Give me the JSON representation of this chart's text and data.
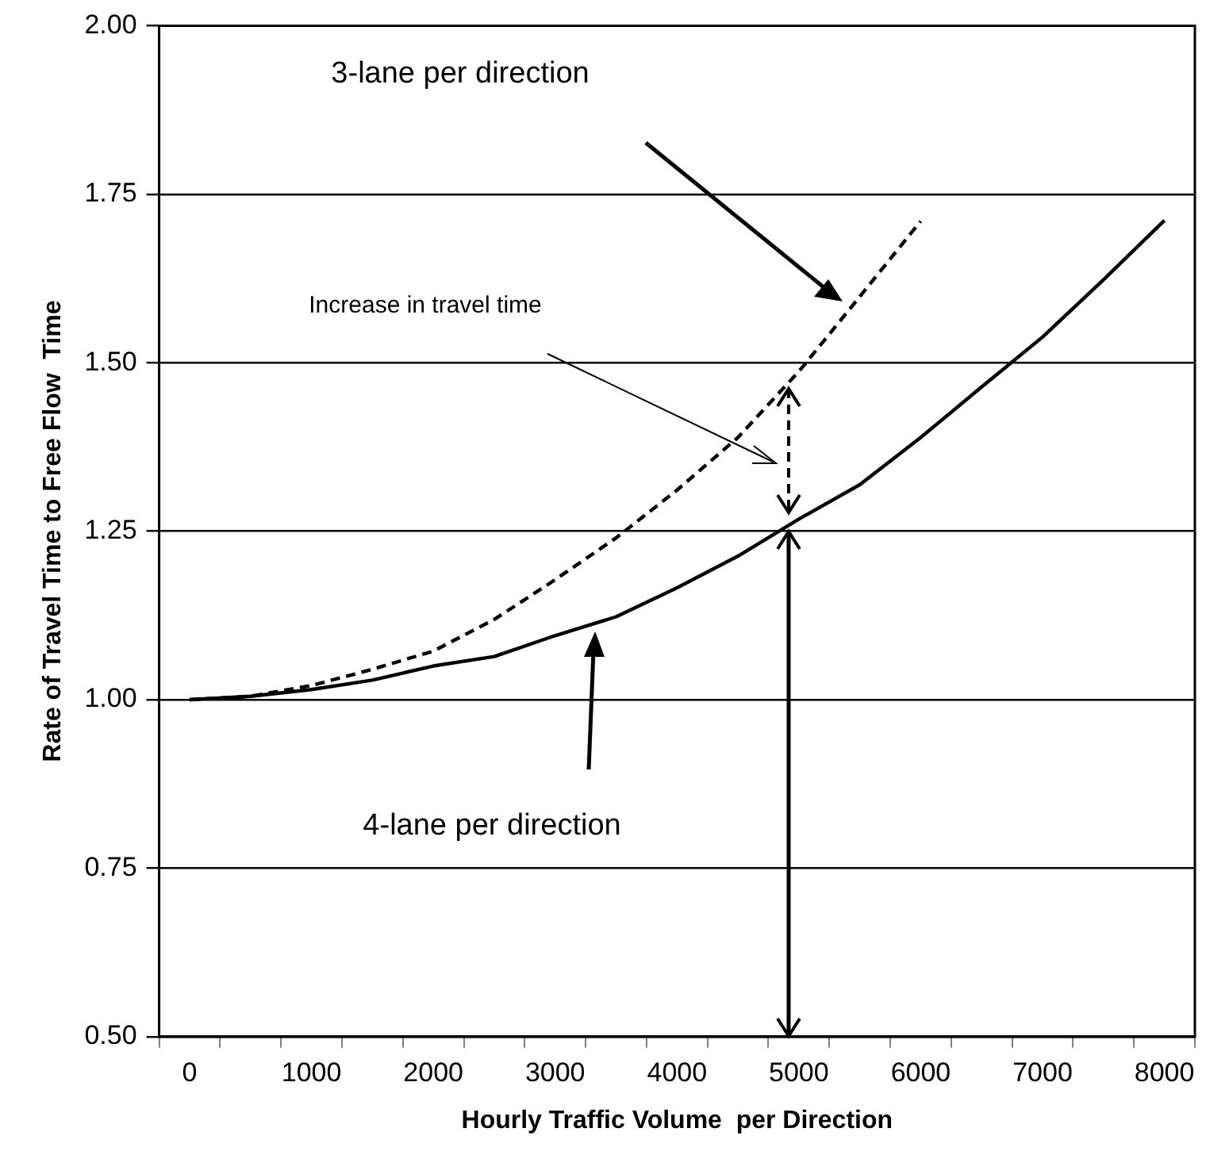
{
  "chart_data": {
    "type": "line",
    "xlabel": "Hourly Traffic Volume  per Direction",
    "ylabel": "Rate of Travel Time to Free Flow  Time",
    "categories": [
      "0",
      null,
      "1000",
      null,
      "2000",
      null,
      "3000",
      null,
      "4000",
      null,
      "5000",
      null,
      "6000",
      null,
      "7000",
      null,
      "8000"
    ],
    "series": [
      {
        "color": "#000000",
        "line_style": "dashed",
        "values": [
          1.0,
          1.005,
          1.021,
          1.045,
          1.072,
          1.119,
          1.178,
          1.24,
          1.311,
          1.389,
          1.487,
          1.598,
          1.71,
          null,
          null,
          null,
          null
        ]
      },
      {
        "color": "#000000",
        "line_style": "solid",
        "values": [
          1.0,
          1.005,
          1.015,
          1.029,
          1.05,
          1.064,
          1.095,
          1.123,
          1.166,
          1.213,
          1.268,
          1.319,
          1.389,
          1.464,
          1.538,
          1.623,
          1.711
        ]
      }
    ],
    "ylim": [
      0.5,
      2.0
    ],
    "yticks": [
      {
        "value": 0.5,
        "label": "0.50"
      },
      {
        "value": 0.75,
        "label": "0.75"
      },
      {
        "value": 1.0,
        "label": "1.00"
      },
      {
        "value": 1.25,
        "label": "1.25"
      },
      {
        "value": 1.5,
        "label": "1.50"
      },
      {
        "value": 1.75,
        "label": "1.75"
      },
      {
        "value": 2.0,
        "label": "2.00"
      }
    ],
    "grid": "y",
    "legend": false,
    "marker": "none",
    "annotations": [
      "3-lane per direction",
      "Increase in travel time",
      "4-lane per direction"
    ]
  }
}
